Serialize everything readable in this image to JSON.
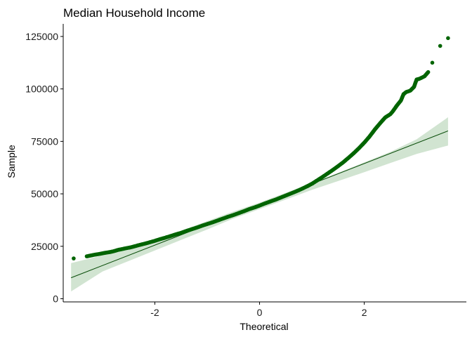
{
  "chart_data": {
    "type": "scatter",
    "subtype": "qq-plot",
    "title": "Median Household Income",
    "xlabel": "Theoretical",
    "ylabel": "Sample",
    "xlim": [
      -3.75,
      3.95
    ],
    "ylim": [
      -1500,
      131000
    ],
    "x_ticks": [
      -2,
      0,
      2
    ],
    "x_tick_labels": [
      "-2",
      "0",
      "2"
    ],
    "y_ticks": [
      0,
      25000,
      50000,
      75000,
      100000,
      125000
    ],
    "y_tick_labels": [
      "0",
      "25000",
      "50000",
      "75000",
      "100000",
      "125000"
    ],
    "grid": false,
    "legend": "none",
    "colors": {
      "points": "#006400",
      "line": "#0a4d0a",
      "band": "#cfe3cf",
      "axis": "#000000"
    },
    "reference_line": {
      "x": [
        -3.6,
        3.6
      ],
      "y": [
        10000,
        80000
      ]
    },
    "confidence_band": {
      "x": [
        -3.6,
        -3.0,
        -2.5,
        -2.0,
        -1.5,
        -1.0,
        -0.5,
        0.0,
        0.5,
        1.0,
        1.5,
        2.0,
        2.5,
        3.0,
        3.6
      ],
      "upper": [
        17000,
        20700,
        24000,
        28000,
        32400,
        37000,
        41600,
        45800,
        50500,
        55200,
        60000,
        65000,
        70000,
        76000,
        86500
      ],
      "lower": [
        3500,
        13000,
        18000,
        23000,
        28000,
        33000,
        38200,
        42700,
        47300,
        51900,
        56100,
        60300,
        64700,
        69000,
        73000
      ]
    },
    "points": [
      [
        -3.55,
        19200
      ],
      [
        -3.3,
        20200
      ],
      [
        -3.15,
        21000
      ],
      [
        -3.05,
        21400
      ],
      [
        -2.95,
        21900
      ],
      [
        -2.85,
        22300
      ],
      [
        -2.78,
        22700
      ],
      [
        -2.7,
        23300
      ],
      [
        -2.62,
        23700
      ],
      [
        -2.55,
        24100
      ],
      [
        -2.48,
        24400
      ],
      [
        -2.4,
        24900
      ],
      [
        -2.33,
        25400
      ],
      [
        -2.25,
        25900
      ],
      [
        -2.17,
        26400
      ],
      [
        -2.1,
        26900
      ],
      [
        -2.0,
        27600
      ],
      [
        -1.9,
        28400
      ],
      [
        -1.8,
        29100
      ],
      [
        -1.7,
        29900
      ],
      [
        -1.6,
        30700
      ],
      [
        -1.5,
        31400
      ],
      [
        -1.4,
        32300
      ],
      [
        -1.3,
        33100
      ],
      [
        -1.2,
        33900
      ],
      [
        -1.1,
        34800
      ],
      [
        -1.0,
        35600
      ],
      [
        -0.9,
        36400
      ],
      [
        -0.8,
        37300
      ],
      [
        -0.7,
        38200
      ],
      [
        -0.6,
        39100
      ],
      [
        -0.5,
        39900
      ],
      [
        -0.4,
        40800
      ],
      [
        -0.3,
        41700
      ],
      [
        -0.2,
        42700
      ],
      [
        -0.1,
        43500
      ],
      [
        0.0,
        44400
      ],
      [
        0.1,
        45400
      ],
      [
        0.2,
        46300
      ],
      [
        0.3,
        47200
      ],
      [
        0.4,
        48200
      ],
      [
        0.5,
        49200
      ],
      [
        0.6,
        50200
      ],
      [
        0.7,
        51200
      ],
      [
        0.8,
        52300
      ],
      [
        0.9,
        53500
      ],
      [
        1.0,
        54800
      ],
      [
        1.1,
        56400
      ],
      [
        1.2,
        58000
      ],
      [
        1.3,
        59700
      ],
      [
        1.4,
        61400
      ],
      [
        1.5,
        63200
      ],
      [
        1.6,
        65100
      ],
      [
        1.7,
        67200
      ],
      [
        1.8,
        69400
      ],
      [
        1.9,
        71800
      ],
      [
        2.0,
        74400
      ],
      [
        2.1,
        77300
      ],
      [
        2.2,
        80600
      ],
      [
        2.3,
        83600
      ],
      [
        2.4,
        86400
      ],
      [
        2.5,
        88000
      ],
      [
        2.55,
        89500
      ],
      [
        2.62,
        92000
      ],
      [
        2.7,
        94500
      ],
      [
        2.75,
        97500
      ],
      [
        2.8,
        98500
      ],
      [
        2.88,
        99200
      ],
      [
        2.95,
        101000
      ],
      [
        3.0,
        104500
      ],
      [
        3.05,
        104800
      ],
      [
        3.15,
        106000
      ],
      [
        3.22,
        108000
      ],
      [
        3.3,
        112500
      ],
      [
        3.45,
        120500
      ],
      [
        3.6,
        124200
      ]
    ]
  }
}
